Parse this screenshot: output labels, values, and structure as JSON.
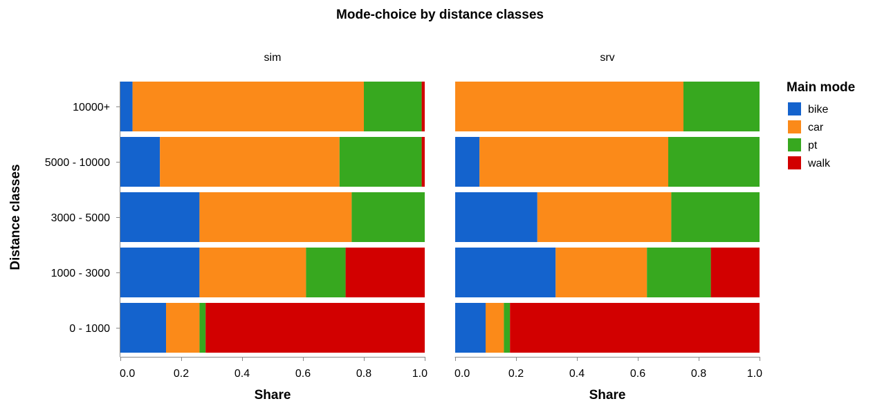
{
  "chart_data": {
    "type": "bar",
    "orientation": "horizontal",
    "stacked": "normalized",
    "title": "Mode-choice by distance classes",
    "xlabel": "Share",
    "ylabel": "Distance classes",
    "xlim": [
      0,
      1
    ],
    "x_ticks": [
      "0.0",
      "0.2",
      "0.4",
      "0.6",
      "0.8",
      "1.0"
    ],
    "categories": [
      "10000+",
      "5000 - 10000",
      "3000 - 5000",
      "1000 - 3000",
      "0 - 1000"
    ],
    "legend": {
      "title": "Main mode",
      "position": "right",
      "entries": [
        "bike",
        "car",
        "pt",
        "walk"
      ]
    },
    "colors": {
      "bike": "#1463cd",
      "car": "#fb8a19",
      "pt": "#37a81f",
      "walk": "#d20000"
    },
    "facets": [
      {
        "name": "sim",
        "series": [
          {
            "name": "bike",
            "values": [
              0.04,
              0.13,
              0.26,
              0.26,
              0.15
            ]
          },
          {
            "name": "car",
            "values": [
              0.76,
              0.59,
              0.5,
              0.35,
              0.11
            ]
          },
          {
            "name": "pt",
            "values": [
              0.19,
              0.27,
              0.24,
              0.13,
              0.02
            ]
          },
          {
            "name": "walk",
            "values": [
              0.01,
              0.01,
              0.0,
              0.26,
              0.72
            ]
          }
        ]
      },
      {
        "name": "srv",
        "series": [
          {
            "name": "bike",
            "values": [
              0.0,
              0.08,
              0.27,
              0.33,
              0.1
            ]
          },
          {
            "name": "car",
            "values": [
              0.75,
              0.62,
              0.44,
              0.3,
              0.06
            ]
          },
          {
            "name": "pt",
            "values": [
              0.25,
              0.3,
              0.29,
              0.21,
              0.02
            ]
          },
          {
            "name": "walk",
            "values": [
              0.0,
              0.0,
              0.0,
              0.16,
              0.82
            ]
          }
        ]
      }
    ],
    "grid": false
  }
}
